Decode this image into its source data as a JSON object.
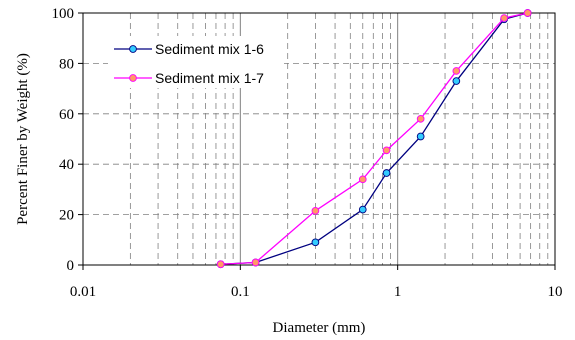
{
  "chart_data": {
    "type": "line",
    "x_scale": "log",
    "xlabel": "Diameter (mm)",
    "ylabel": "Percent Finer by Weight (%)",
    "xlim": [
      0.01,
      10
    ],
    "ylim": [
      0,
      100
    ],
    "x_ticks": [
      {
        "value": 0.01,
        "label": "0.01"
      },
      {
        "value": 0.1,
        "label": "0.1"
      },
      {
        "value": 1,
        "label": "1"
      },
      {
        "value": 10,
        "label": "10"
      }
    ],
    "y_ticks": [
      {
        "value": 0,
        "label": "0"
      },
      {
        "value": 20,
        "label": "20"
      },
      {
        "value": 40,
        "label": "40"
      },
      {
        "value": 60,
        "label": "60"
      },
      {
        "value": 80,
        "label": "80"
      },
      {
        "value": 100,
        "label": "100"
      }
    ],
    "grid": true,
    "legend_position": "top-left",
    "series": [
      {
        "name": "Sediment mix 1-6",
        "line_color": "#000080",
        "marker_color": "#33ccff",
        "x": [
          0.075,
          0.125,
          0.3,
          0.6,
          0.85,
          1.4,
          2.36,
          4.75,
          6.7
        ],
        "y": [
          0.3,
          1.0,
          9.0,
          22.0,
          36.5,
          51.0,
          73.0,
          97.5,
          100.0
        ]
      },
      {
        "name": "Sediment mix 1-7",
        "line_color": "#ff00ff",
        "marker_color": "#ff9966",
        "x": [
          0.075,
          0.125,
          0.3,
          0.6,
          0.85,
          1.4,
          2.36,
          4.75,
          6.7
        ],
        "y": [
          0.3,
          1.0,
          21.5,
          34.0,
          45.5,
          58.0,
          77.0,
          98.0,
          100.0
        ]
      }
    ]
  }
}
